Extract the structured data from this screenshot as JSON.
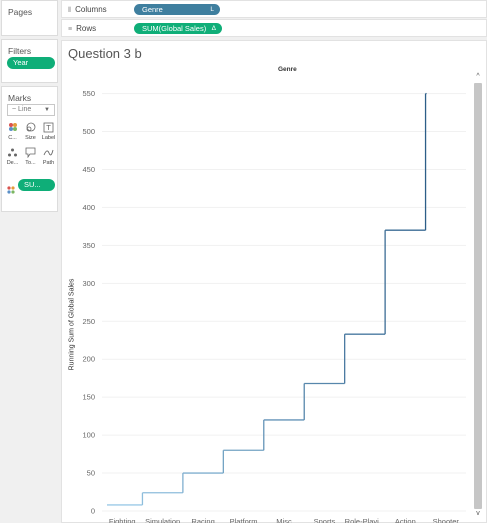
{
  "left": {
    "pages_title": "Pages",
    "filters_title": "Filters",
    "filter_pill": "Year",
    "marks_title": "Marks",
    "mark_type": "Line",
    "mark_type_icon": "line-icon",
    "mark_buttons": [
      {
        "label": "C...",
        "icon": "color-icon"
      },
      {
        "label": "Size",
        "icon": "size-icon"
      },
      {
        "label": "Label",
        "icon": "label-icon"
      },
      {
        "label": "De...",
        "icon": "detail-icon"
      },
      {
        "label": "To...",
        "icon": "tooltip-icon"
      },
      {
        "label": "Path",
        "icon": "path-icon"
      }
    ],
    "mark_field_pill": "SU..."
  },
  "shelves": {
    "columns_label": "Columns",
    "columns_pill": "Genre",
    "columns_pill_suffix": "L",
    "rows_label": "Rows",
    "rows_pill": "SUM(Global Sales)",
    "rows_pill_suffix": "Δ"
  },
  "colors": {
    "columns_pill": "#3f7f9f",
    "rows_pill": "#0fae78",
    "line_start": "#9ccae7",
    "line_end": "#2d5e88"
  },
  "view": {
    "title": "Question 3 b",
    "column_header": "Genre"
  },
  "chart_data": {
    "type": "line",
    "step": true,
    "title": "",
    "xlabel": "Genre",
    "ylabel": "Running Sum of Global Sales",
    "categories": [
      "Fighting",
      "Simulation",
      "Racing",
      "Platform",
      "Misc",
      "Sports",
      "Role-Playi...",
      "Action",
      "Shooter"
    ],
    "values": [
      8,
      24,
      50,
      80,
      120,
      168,
      233,
      370,
      550
    ],
    "yticks": [
      0,
      50,
      100,
      150,
      200,
      250,
      300,
      350,
      400,
      450,
      500,
      550
    ],
    "ylim": [
      0,
      560
    ],
    "grid": true,
    "color_gradient": true
  }
}
